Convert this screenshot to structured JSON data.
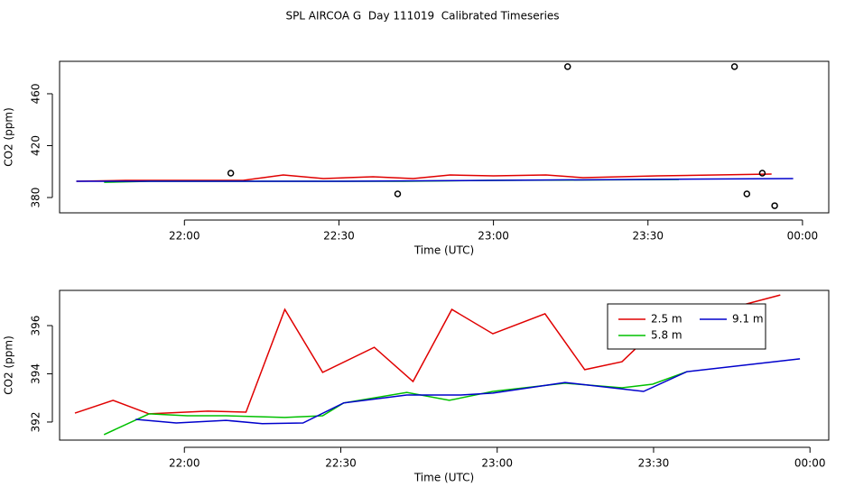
{
  "title": "SPL AIRCOA G  Day 111019  Calibrated Timeseries",
  "chart_data": [
    {
      "type": "line",
      "x_label": "Time (UTC)",
      "y_label": "CO2 (ppm)",
      "xlim": [
        21.596,
        24.085
      ],
      "ylim": [
        368.2,
        485
      ],
      "xticks": [
        {
          "value": 22,
          "label": "22:00"
        },
        {
          "value": 22.5,
          "label": "22:30"
        },
        {
          "value": 23,
          "label": "23:00"
        },
        {
          "value": 23.5,
          "label": "23:30"
        },
        {
          "value": 24,
          "label": "00:00"
        }
      ],
      "yticks": [
        380,
        420,
        460
      ],
      "series": [
        {
          "color": "#e00000",
          "x": [
            21.65,
            21.81,
            22.19,
            22.32,
            22.45,
            22.61,
            22.74,
            22.86,
            23.0,
            23.17,
            23.29,
            23.53,
            23.9
          ],
          "values": [
            392.5,
            393.2,
            393.2,
            397.4,
            394.6,
            396.0,
            394.6,
            397.4,
            396.7,
            397.4,
            395.3,
            396.7,
            398.1
          ]
        },
        {
          "color": "#00c000",
          "x": [
            21.74,
            21.89,
            22.33,
            22.71,
            23.0,
            23.6
          ],
          "values": [
            391.8,
            392.5,
            392.5,
            392.5,
            393.2,
            393.9
          ]
        },
        {
          "color": "#0000cc",
          "x": [
            21.65,
            22.13,
            22.51,
            22.99,
            23.47,
            23.97
          ],
          "values": [
            392.5,
            392.5,
            392.5,
            393.2,
            393.9,
            394.6
          ]
        },
        {
          "color": "#000000",
          "mode": "points",
          "x": [
            22.15,
            22.69,
            23.24,
            23.78,
            23.82,
            23.87,
            23.91
          ],
          "values": [
            398.8,
            382.8,
            480.9,
            480.9,
            382.8,
            398.8,
            373.7
          ]
        }
      ]
    },
    {
      "type": "line",
      "x_label": "Time (UTC)",
      "y_label": "CO2 (ppm)",
      "xlim": [
        21.601,
        24.06
      ],
      "ylim": [
        391.25,
        397.46
      ],
      "xticks": [
        {
          "value": 22,
          "label": "22:00"
        },
        {
          "value": 22.5,
          "label": "22:30"
        },
        {
          "value": 23,
          "label": "23:00"
        },
        {
          "value": 23.5,
          "label": "23:30"
        },
        {
          "value": 24,
          "label": "00:00"
        }
      ],
      "yticks": [
        392,
        394,
        396
      ],
      "legend": "top-right",
      "series": [
        {
          "name": "2.5 m",
          "color": "#e00000",
          "x": [
            21.65,
            21.772,
            21.887,
            22.075,
            22.197,
            22.321,
            22.442,
            22.607,
            22.731,
            22.855,
            22.986,
            23.153,
            23.28,
            23.399,
            23.514,
            23.905
          ],
          "values": [
            392.37,
            392.9,
            392.34,
            392.45,
            392.41,
            396.67,
            394.06,
            395.1,
            393.68,
            396.67,
            395.66,
            396.49,
            394.17,
            394.5,
            395.93,
            397.27
          ]
        },
        {
          "name": "5.8 m",
          "color": "#00c000",
          "x": [
            21.743,
            21.887,
            22.009,
            22.133,
            22.321,
            22.442,
            22.509,
            22.711,
            22.847,
            22.986,
            23.217,
            23.399,
            23.497,
            23.607
          ],
          "values": [
            391.48,
            392.34,
            392.26,
            392.26,
            392.19,
            392.26,
            392.79,
            393.23,
            392.9,
            393.27,
            393.61,
            393.42,
            393.57,
            394.09
          ]
        },
        {
          "name": "9.1 m",
          "color": "#0000cc",
          "x": [
            21.844,
            21.974,
            22.133,
            22.249,
            22.379,
            22.509,
            22.711,
            22.884,
            22.986,
            23.217,
            23.468,
            23.607,
            23.968
          ],
          "values": [
            392.11,
            391.96,
            392.07,
            391.93,
            391.96,
            392.79,
            393.12,
            393.12,
            393.2,
            393.64,
            393.27,
            394.09,
            394.62
          ]
        }
      ]
    }
  ]
}
